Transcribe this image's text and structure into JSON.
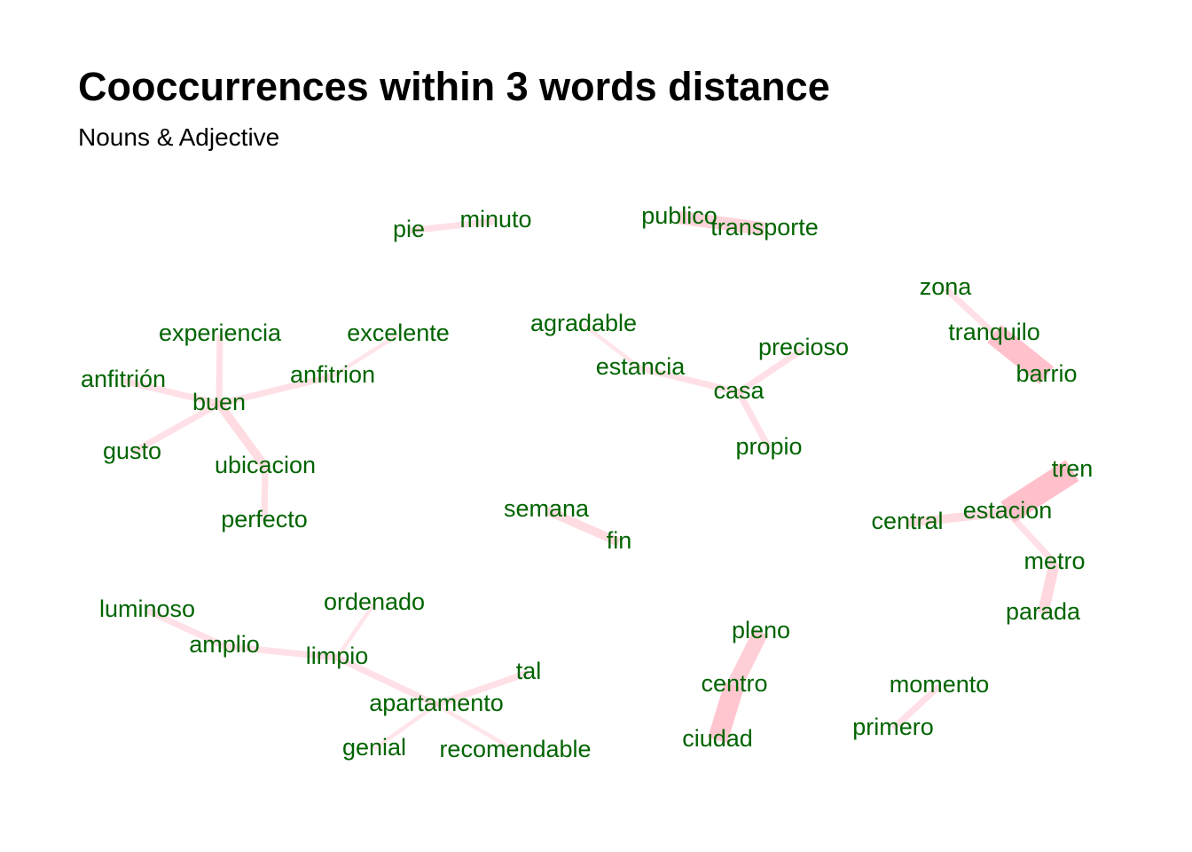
{
  "title": "Cooccurrences within 3 words distance",
  "subtitle": "Nouns & Adjective",
  "colors": {
    "edge": "#ffc0cb",
    "label": "#006400"
  },
  "nodes": [
    {
      "id": "pie",
      "label": "pie"
    },
    {
      "id": "minuto",
      "label": "minuto"
    },
    {
      "id": "publico",
      "label": "publico"
    },
    {
      "id": "transporte",
      "label": "transporte"
    },
    {
      "id": "zona",
      "label": "zona"
    },
    {
      "id": "tranquilo",
      "label": "tranquilo"
    },
    {
      "id": "barrio",
      "label": "barrio"
    },
    {
      "id": "experiencia",
      "label": "experiencia"
    },
    {
      "id": "excelente",
      "label": "excelente"
    },
    {
      "id": "anfitrion",
      "label": "anfitrion"
    },
    {
      "id": "anfitrion_accent",
      "label": "anfitrión"
    },
    {
      "id": "buen",
      "label": "buen"
    },
    {
      "id": "gusto",
      "label": "gusto"
    },
    {
      "id": "ubicacion",
      "label": "ubicacion"
    },
    {
      "id": "perfecto",
      "label": "perfecto"
    },
    {
      "id": "agradable",
      "label": "agradable"
    },
    {
      "id": "estancia",
      "label": "estancia"
    },
    {
      "id": "casa",
      "label": "casa"
    },
    {
      "id": "precioso",
      "label": "precioso"
    },
    {
      "id": "propio",
      "label": "propio"
    },
    {
      "id": "semana",
      "label": "semana"
    },
    {
      "id": "fin",
      "label": "fin"
    },
    {
      "id": "tren",
      "label": "tren"
    },
    {
      "id": "estacion",
      "label": "estacion"
    },
    {
      "id": "central",
      "label": "central"
    },
    {
      "id": "metro",
      "label": "metro"
    },
    {
      "id": "parada",
      "label": "parada"
    },
    {
      "id": "luminoso",
      "label": "luminoso"
    },
    {
      "id": "amplio",
      "label": "amplio"
    },
    {
      "id": "ordenado",
      "label": "ordenado"
    },
    {
      "id": "limpio",
      "label": "limpio"
    },
    {
      "id": "tal",
      "label": "tal"
    },
    {
      "id": "apartamento",
      "label": "apartamento"
    },
    {
      "id": "genial",
      "label": "genial"
    },
    {
      "id": "recomendable",
      "label": "recomendable"
    },
    {
      "id": "pleno",
      "label": "pleno"
    },
    {
      "id": "centro",
      "label": "centro"
    },
    {
      "id": "ciudad",
      "label": "ciudad"
    },
    {
      "id": "momento",
      "label": "momento"
    },
    {
      "id": "primero",
      "label": "primero"
    }
  ],
  "edges": [
    {
      "source": "pie",
      "target": "minuto",
      "weight": 2
    },
    {
      "source": "publico",
      "target": "transporte",
      "weight": 5
    },
    {
      "source": "zona",
      "target": "tranquilo",
      "weight": 2
    },
    {
      "source": "tranquilo",
      "target": "barrio",
      "weight": 9
    },
    {
      "source": "experiencia",
      "target": "buen",
      "weight": 2
    },
    {
      "source": "excelente",
      "target": "anfitrion",
      "weight": 1
    },
    {
      "source": "anfitrion",
      "target": "buen",
      "weight": 2
    },
    {
      "source": "anfitrion_accent",
      "target": "buen",
      "weight": 2
    },
    {
      "source": "gusto",
      "target": "buen",
      "weight": 2
    },
    {
      "source": "buen",
      "target": "ubicacion",
      "weight": 3
    },
    {
      "source": "ubicacion",
      "target": "perfecto",
      "weight": 2
    },
    {
      "source": "agradable",
      "target": "estancia",
      "weight": 1
    },
    {
      "source": "estancia",
      "target": "casa",
      "weight": 2
    },
    {
      "source": "casa",
      "target": "precioso",
      "weight": 2
    },
    {
      "source": "casa",
      "target": "propio",
      "weight": 2
    },
    {
      "source": "semana",
      "target": "fin",
      "weight": 3
    },
    {
      "source": "tren",
      "target": "estacion",
      "weight": 10
    },
    {
      "source": "central",
      "target": "estacion",
      "weight": 3
    },
    {
      "source": "estacion",
      "target": "metro",
      "weight": 2
    },
    {
      "source": "metro",
      "target": "parada",
      "weight": 4
    },
    {
      "source": "luminoso",
      "target": "amplio",
      "weight": 2
    },
    {
      "source": "amplio",
      "target": "limpio",
      "weight": 2
    },
    {
      "source": "ordenado",
      "target": "limpio",
      "weight": 1
    },
    {
      "source": "limpio",
      "target": "apartamento",
      "weight": 2
    },
    {
      "source": "tal",
      "target": "apartamento",
      "weight": 2
    },
    {
      "source": "apartamento",
      "target": "genial",
      "weight": 1
    },
    {
      "source": "apartamento",
      "target": "recomendable",
      "weight": 1
    },
    {
      "source": "pleno",
      "target": "centro",
      "weight": 6
    },
    {
      "source": "centro",
      "target": "ciudad",
      "weight": 8
    },
    {
      "source": "momento",
      "target": "primero",
      "weight": 2
    }
  ]
}
